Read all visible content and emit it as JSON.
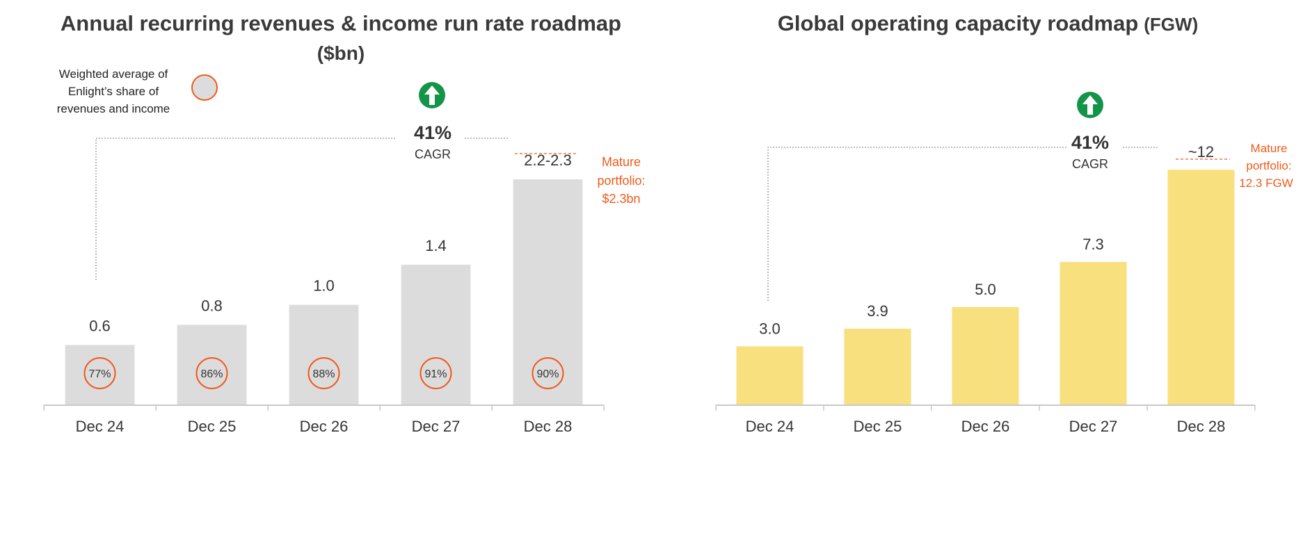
{
  "colors": {
    "bar_gray": "#dcdcdc",
    "bar_yellow": "#f9e07f",
    "accent_orange": "#f05a1a",
    "arrow_green": "#139449",
    "text_dark": "#333333",
    "axis": "#c8c8c8"
  },
  "chart_data": [
    {
      "type": "bar",
      "title_main": "Annual recurring revenues & income run rate roadmap",
      "title_sub": "($bn)",
      "categories": [
        "Dec 24",
        "Dec 25",
        "Dec 26",
        "Dec 27",
        "Dec 28"
      ],
      "values": [
        0.6,
        0.8,
        1.0,
        1.4,
        2.25
      ],
      "value_labels": [
        "0.6",
        "0.8",
        "1.0",
        "1.4",
        "2.2-2.3"
      ],
      "circle_labels": [
        "77%",
        "86%",
        "88%",
        "91%",
        "90%"
      ],
      "legend": {
        "lines": [
          "Weighted average of",
          "Enlight’s share of",
          "revenues and income"
        ],
        "icon": "orange-ring-circle"
      },
      "cagr": {
        "value": "41%",
        "label": "CAGR",
        "icon": "up-arrow-circle"
      },
      "annotation": [
        "Mature",
        "portfolio:",
        "$2.3bn"
      ],
      "ylim": [
        0,
        2.5
      ]
    },
    {
      "type": "bar",
      "title_main": "Global operating capacity roadmap",
      "title_sub": "(FGW)",
      "categories": [
        "Dec 24",
        "Dec 25",
        "Dec 26",
        "Dec 27",
        "Dec 28"
      ],
      "values": [
        3.0,
        3.9,
        5.0,
        7.3,
        12
      ],
      "value_labels": [
        "3.0",
        "3.9",
        "5.0",
        "7.3",
        "~12"
      ],
      "cagr": {
        "value": "41%",
        "label": "CAGR",
        "icon": "up-arrow-circle"
      },
      "annotation": [
        "Mature",
        "portfolio:",
        "12.3 FGW"
      ],
      "ylim": [
        0,
        13
      ]
    }
  ]
}
